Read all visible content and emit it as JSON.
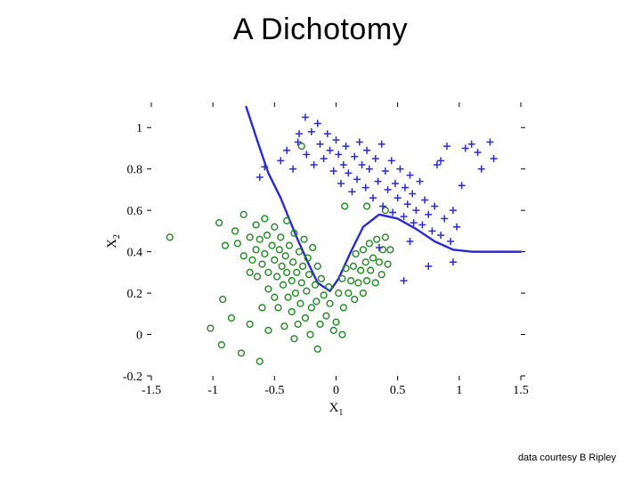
{
  "title": "A Dichotomy",
  "credit": "data courtesy B Ripley",
  "chart": {
    "type": "scatter",
    "background_color": "#ffffff",
    "xlim": [
      -1.5,
      1.5
    ],
    "ylim": [
      -0.2,
      1.1
    ],
    "xticks": [
      -1.5,
      -1,
      -0.5,
      0,
      0.5,
      1,
      1.5
    ],
    "xtick_labels": [
      "-1.5",
      "-1",
      "-0.5",
      "0",
      "0.5",
      "1",
      "1.5"
    ],
    "yticks": [
      -0.2,
      0,
      0.2,
      0.4,
      0.6,
      0.8,
      1
    ],
    "ytick_labels": [
      "-0.2",
      "0",
      "0.2",
      "0.4",
      "0.6",
      "0.8",
      "1"
    ],
    "xlabel_main": "X",
    "xlabel_sub": "1",
    "ylabel_main": "X",
    "ylabel_sub": "2",
    "tick_fontsize": 14,
    "axis_label_fontsize": 15,
    "tick_len": 5,
    "tick_color": "#000000",
    "series": {
      "circles": {
        "marker": "open-circle",
        "color": "#1e8a1e",
        "stroke_width": 1.4,
        "radius": 3.4,
        "points": [
          [
            -1.35,
            0.47
          ],
          [
            -0.28,
            0.91
          ],
          [
            0.07,
            0.62
          ],
          [
            0.25,
            0.62
          ],
          [
            0.4,
            0.6
          ],
          [
            -0.95,
            0.54
          ],
          [
            -0.9,
            0.43
          ],
          [
            -0.82,
            0.5
          ],
          [
            -0.8,
            0.44
          ],
          [
            -0.75,
            0.58
          ],
          [
            -0.75,
            0.38
          ],
          [
            -0.7,
            0.47
          ],
          [
            -0.7,
            0.3
          ],
          [
            -0.68,
            0.36
          ],
          [
            -0.65,
            0.53
          ],
          [
            -0.65,
            0.41
          ],
          [
            -0.64,
            0.28
          ],
          [
            -0.62,
            0.46
          ],
          [
            -0.6,
            0.13
          ],
          [
            -0.6,
            0.34
          ],
          [
            -0.58,
            0.56
          ],
          [
            -0.58,
            0.39
          ],
          [
            -0.56,
            0.48
          ],
          [
            -0.55,
            0.22
          ],
          [
            -0.55,
            0.3
          ],
          [
            -0.52,
            0.43
          ],
          [
            -0.5,
            0.52
          ],
          [
            -0.5,
            0.36
          ],
          [
            -0.5,
            0.18
          ],
          [
            -0.48,
            0.28
          ],
          [
            -0.47,
            0.13
          ],
          [
            -0.46,
            0.41
          ],
          [
            -0.45,
            0.47
          ],
          [
            -0.44,
            0.33
          ],
          [
            -0.43,
            0.24
          ],
          [
            -0.42,
            0.04
          ],
          [
            -0.41,
            0.38
          ],
          [
            -0.4,
            0.55
          ],
          [
            -0.4,
            0.3
          ],
          [
            -0.39,
            0.18
          ],
          [
            -0.38,
            0.43
          ],
          [
            -0.36,
            0.26
          ],
          [
            -0.36,
            0.11
          ],
          [
            -0.35,
            0.35
          ],
          [
            -0.34,
            0.49
          ],
          [
            -0.33,
            0.2
          ],
          [
            -0.32,
            0.3
          ],
          [
            -0.31,
            0.05
          ],
          [
            -0.3,
            0.4
          ],
          [
            -0.29,
            0.15
          ],
          [
            -0.28,
            0.25
          ],
          [
            -0.27,
            0.33
          ],
          [
            -0.26,
            0.46
          ],
          [
            -0.25,
            0.08
          ],
          [
            -0.24,
            0.21
          ],
          [
            -0.23,
            0.37
          ],
          [
            -0.22,
            0.29
          ],
          [
            -0.21,
            0.0
          ],
          [
            -0.2,
            0.13
          ],
          [
            -0.19,
            0.42
          ],
          [
            -0.17,
            0.24
          ],
          [
            -0.16,
            0.16
          ],
          [
            -0.15,
            0.33
          ],
          [
            -0.13,
            0.05
          ],
          [
            -0.12,
            0.27
          ],
          [
            -0.1,
            0.19
          ],
          [
            -0.08,
            0.09
          ],
          [
            -0.06,
            0.23
          ],
          [
            -0.05,
            0.15
          ],
          [
            0.0,
            0.06
          ],
          [
            0.02,
            0.2
          ],
          [
            0.05,
            0.27
          ],
          [
            0.06,
            0.13
          ],
          [
            0.08,
            0.32
          ],
          [
            0.1,
            0.2
          ],
          [
            0.12,
            0.26
          ],
          [
            0.14,
            0.33
          ],
          [
            0.15,
            0.17
          ],
          [
            0.16,
            0.39
          ],
          [
            0.18,
            0.25
          ],
          [
            0.2,
            0.31
          ],
          [
            0.22,
            0.2
          ],
          [
            0.22,
            0.41
          ],
          [
            0.24,
            0.35
          ],
          [
            0.25,
            0.26
          ],
          [
            0.27,
            0.44
          ],
          [
            0.28,
            0.31
          ],
          [
            0.3,
            0.37
          ],
          [
            0.32,
            0.25
          ],
          [
            0.33,
            0.46
          ],
          [
            0.35,
            0.35
          ],
          [
            0.37,
            0.29
          ],
          [
            0.38,
            0.41
          ],
          [
            0.4,
            0.47
          ],
          [
            0.42,
            0.34
          ],
          [
            0.44,
            0.41
          ],
          [
            -0.77,
            -0.09
          ],
          [
            -0.93,
            -0.05
          ],
          [
            -0.62,
            -0.13
          ],
          [
            -0.34,
            -0.02
          ],
          [
            -0.15,
            -0.07
          ],
          [
            0.05,
            -0.0
          ],
          [
            -1.02,
            0.03
          ],
          [
            -0.92,
            0.17
          ],
          [
            -0.85,
            0.08
          ],
          [
            -0.7,
            0.05
          ],
          [
            -0.55,
            0.02
          ],
          [
            -0.02,
            0.02
          ]
        ]
      },
      "plus": {
        "marker": "plus",
        "color": "#2929d6",
        "stroke_width": 1.5,
        "size": 8,
        "points": [
          [
            -0.62,
            0.76
          ],
          [
            -0.58,
            0.81
          ],
          [
            -0.45,
            0.84
          ],
          [
            -0.4,
            0.89
          ],
          [
            -0.35,
            0.8
          ],
          [
            -0.31,
            0.93
          ],
          [
            -0.3,
            0.97
          ],
          [
            -0.25,
            1.05
          ],
          [
            -0.24,
            0.87
          ],
          [
            -0.2,
            0.98
          ],
          [
            -0.18,
            0.82
          ],
          [
            -0.15,
            1.02
          ],
          [
            -0.13,
            0.92
          ],
          [
            -0.1,
            0.85
          ],
          [
            -0.07,
            0.97
          ],
          [
            -0.05,
            0.89
          ],
          [
            -0.02,
            0.79
          ],
          [
            0.0,
            0.94
          ],
          [
            0.02,
            0.87
          ],
          [
            0.04,
            0.73
          ],
          [
            0.06,
            0.82
          ],
          [
            0.08,
            0.91
          ],
          [
            0.1,
            0.78
          ],
          [
            0.13,
            0.69
          ],
          [
            0.15,
            0.86
          ],
          [
            0.17,
            0.75
          ],
          [
            0.19,
            0.93
          ],
          [
            0.21,
            0.82
          ],
          [
            0.24,
            0.71
          ],
          [
            0.25,
            0.89
          ],
          [
            0.27,
            0.8
          ],
          [
            0.3,
            0.66
          ],
          [
            0.32,
            0.85
          ],
          [
            0.34,
            0.74
          ],
          [
            0.37,
            0.92
          ],
          [
            0.38,
            0.62
          ],
          [
            0.4,
            0.79
          ],
          [
            0.42,
            0.7
          ],
          [
            0.45,
            0.84
          ],
          [
            0.46,
            0.59
          ],
          [
            0.48,
            0.73
          ],
          [
            0.5,
            0.66
          ],
          [
            0.52,
            0.8
          ],
          [
            0.55,
            0.57
          ],
          [
            0.56,
            0.71
          ],
          [
            0.58,
            0.63
          ],
          [
            0.6,
            0.77
          ],
          [
            0.63,
            0.54
          ],
          [
            0.62,
            0.68
          ],
          [
            0.65,
            0.6
          ],
          [
            0.68,
            0.74
          ],
          [
            0.7,
            0.53
          ],
          [
            0.72,
            0.65
          ],
          [
            0.75,
            0.58
          ],
          [
            0.78,
            0.5
          ],
          [
            0.8,
            0.62
          ],
          [
            0.82,
            0.82
          ],
          [
            0.85,
            0.84
          ],
          [
            0.85,
            0.48
          ],
          [
            0.88,
            0.56
          ],
          [
            0.9,
            0.91
          ],
          [
            0.93,
            0.45
          ],
          [
            0.95,
            0.6
          ],
          [
            0.98,
            0.52
          ],
          [
            1.02,
            0.72
          ],
          [
            1.05,
            0.9
          ],
          [
            1.1,
            0.92
          ],
          [
            1.15,
            0.88
          ],
          [
            1.18,
            0.8
          ],
          [
            1.25,
            0.93
          ],
          [
            1.28,
            0.85
          ],
          [
            0.35,
            0.42
          ],
          [
            0.6,
            0.45
          ],
          [
            0.75,
            0.33
          ],
          [
            0.55,
            0.26
          ],
          [
            0.95,
            0.35
          ]
        ]
      }
    },
    "boundary": {
      "color": "#2929d6",
      "stroke_width": 2.4,
      "points": [
        [
          -0.73,
          1.1
        ],
        [
          -0.63,
          0.92
        ],
        [
          -0.55,
          0.78
        ],
        [
          -0.45,
          0.66
        ],
        [
          -0.32,
          0.47
        ],
        [
          -0.23,
          0.35
        ],
        [
          -0.15,
          0.25
        ],
        [
          -0.05,
          0.21
        ],
        [
          0.02,
          0.27
        ],
        [
          0.12,
          0.4
        ],
        [
          0.22,
          0.52
        ],
        [
          0.35,
          0.58
        ],
        [
          0.5,
          0.56
        ],
        [
          0.65,
          0.51
        ],
        [
          0.8,
          0.45
        ],
        [
          0.95,
          0.41
        ],
        [
          1.1,
          0.4
        ],
        [
          1.25,
          0.4
        ],
        [
          1.4,
          0.4
        ],
        [
          1.5,
          0.4
        ]
      ]
    }
  }
}
